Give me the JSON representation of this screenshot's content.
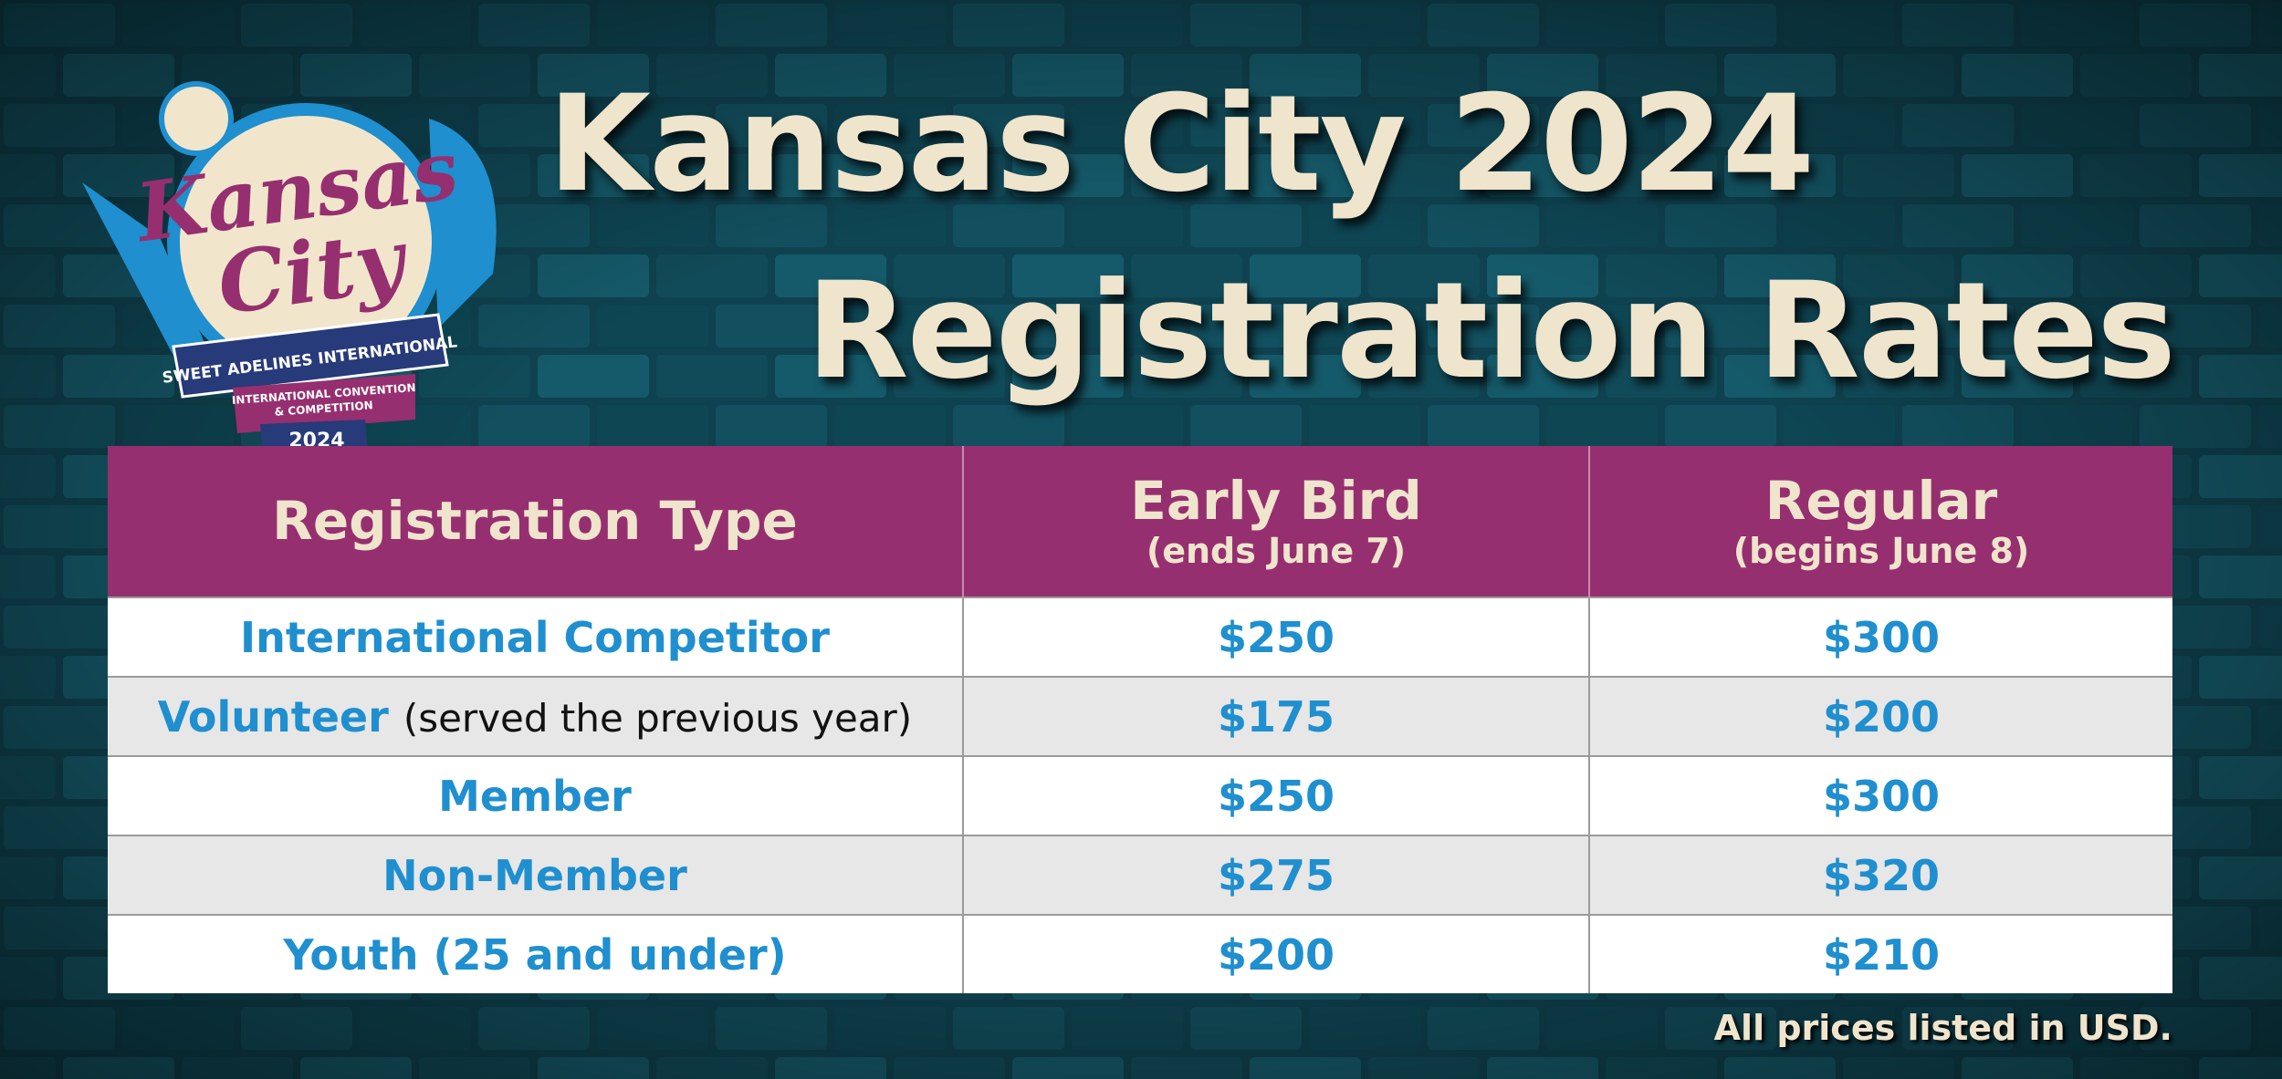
{
  "logo": {
    "line1": "Kansas",
    "line2": "City",
    "banner": "SWEET ADELINES INTERNATIONAL",
    "sub1": "INTERNATIONAL CONVENTION",
    "sub2": "& COMPETITION",
    "year": "2024"
  },
  "title": {
    "line1": "Kansas City 2024",
    "line2": "Registration Rates"
  },
  "table": {
    "header": [
      {
        "label": "Registration Type"
      },
      {
        "label": "Early Bird",
        "note": "(ends June 7)"
      },
      {
        "label": "Regular",
        "note": "(begins June 8)"
      }
    ],
    "rows": [
      {
        "type": "International Competitor",
        "early": "$250",
        "regular": "$300"
      },
      {
        "type": "Volunteer",
        "note": "(served the previous year)",
        "early": "$175",
        "regular": "$200"
      },
      {
        "type": "Member",
        "early": "$250",
        "regular": "$300"
      },
      {
        "type": "Non-Member",
        "early": "$275",
        "regular": "$320"
      },
      {
        "type": "Youth (25 and under)",
        "early": "$200",
        "regular": "$210"
      }
    ]
  },
  "footnote": "All prices listed in USD."
}
